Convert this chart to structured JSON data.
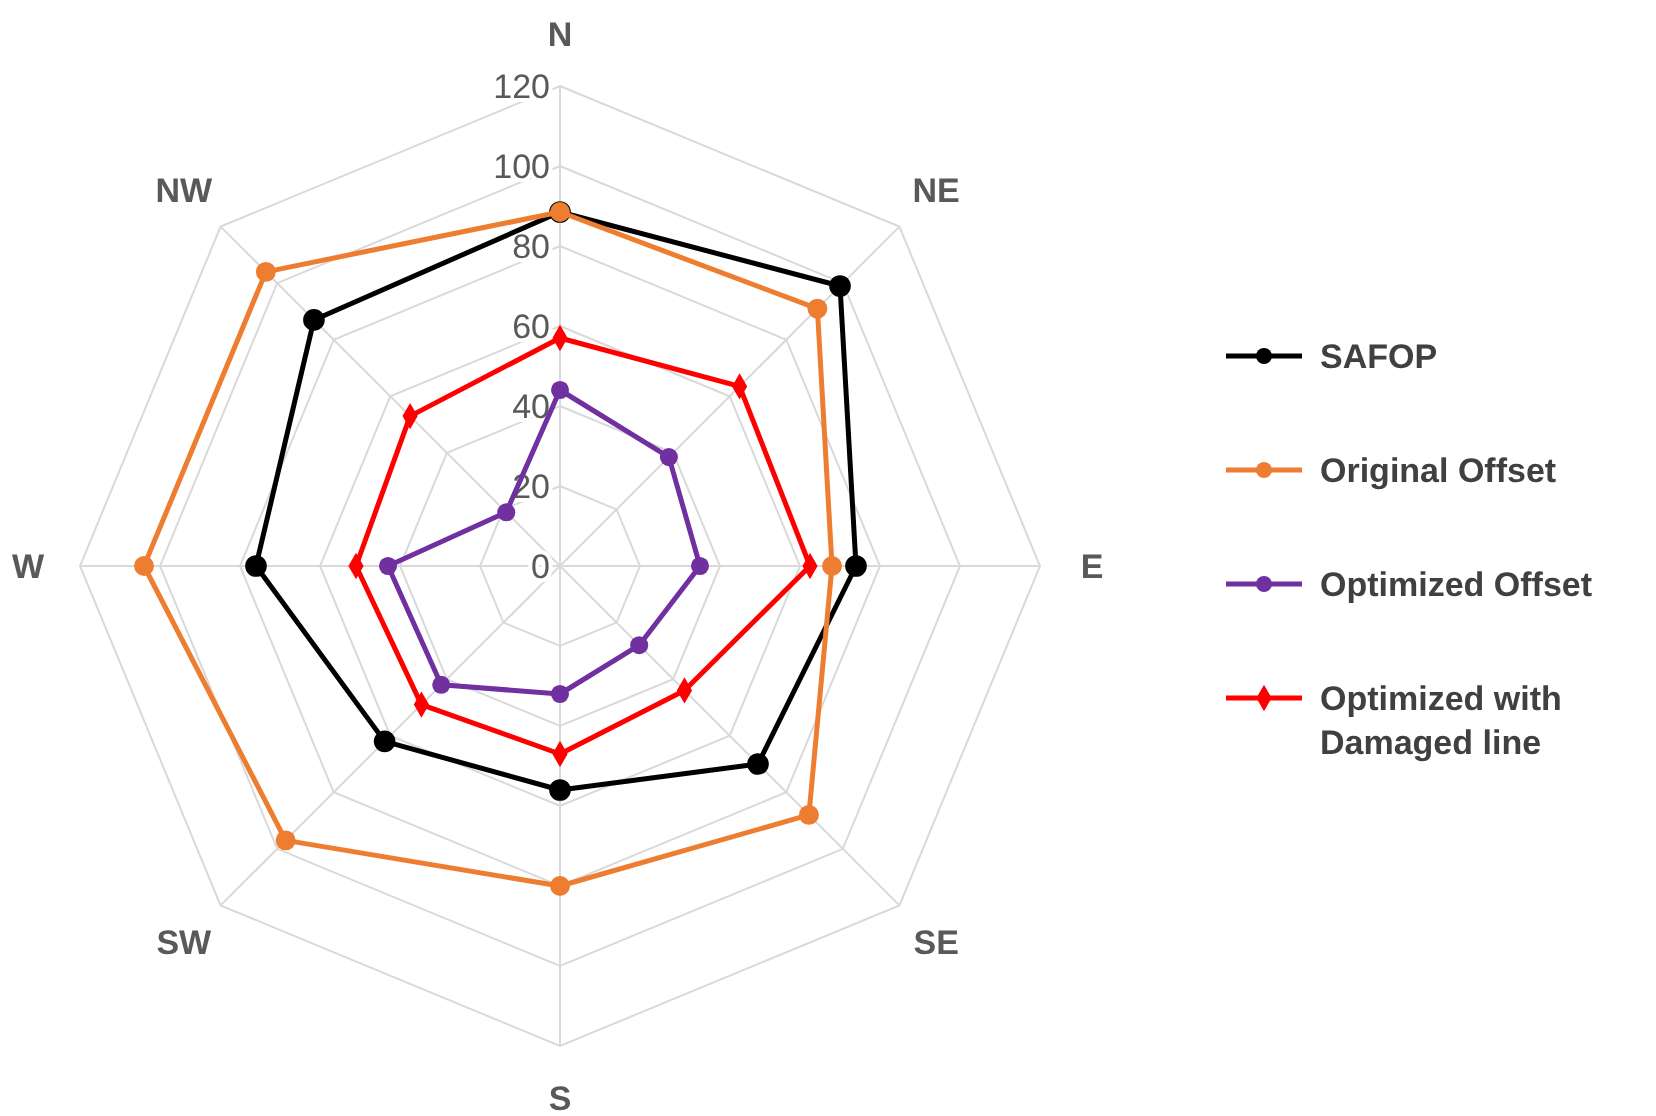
{
  "chart_data": {
    "type": "radar",
    "categories": [
      "N",
      "NE",
      "E",
      "SE",
      "S",
      "SW",
      "W",
      "NW"
    ],
    "ylim": [
      0,
      120
    ],
    "yticks": [
      0,
      20,
      40,
      60,
      80,
      100,
      120
    ],
    "grid": true,
    "legend": "right",
    "series": [
      {
        "name": "SAFOP",
        "color": "#000000",
        "marker": "circle",
        "values": [
          88.5,
          99,
          74,
          70,
          56,
          62,
          76,
          87
        ]
      },
      {
        "name": "Original Offset",
        "color": "#ed7d31",
        "marker": "circle",
        "values": [
          88.5,
          91,
          68,
          88,
          80,
          97,
          104,
          104
        ]
      },
      {
        "name": "Optimized Offset",
        "color": "#7030a0",
        "marker": "circle",
        "values": [
          44,
          38.5,
          35,
          28,
          32,
          42,
          43,
          19
        ]
      },
      {
        "name": "Optimized with Damaged line",
        "color": "#ff0000",
        "marker": "diamond",
        "values": [
          57,
          63.5,
          62.5,
          44,
          47,
          49,
          51,
          53
        ]
      }
    ]
  }
}
